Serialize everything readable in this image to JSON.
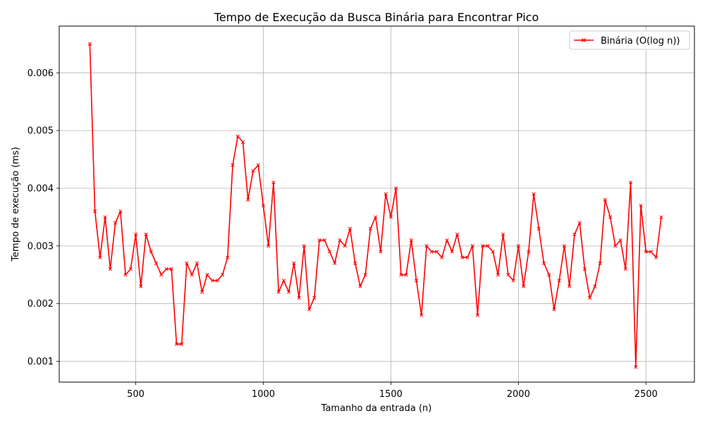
{
  "chart_data": {
    "type": "line",
    "title": "Tempo de Execução da Busca Binária para Encontrar Pico",
    "xlabel": "Tamanho da entrada (n)",
    "ylabel": "Tempo de execução (ms)",
    "xlim": [
      200,
      2690
    ],
    "ylim": [
      0.00064,
      0.00681
    ],
    "xticks": [
      500,
      1000,
      1500,
      2000,
      2500
    ],
    "yticks": [
      0.001,
      0.002,
      0.003,
      0.004,
      0.005,
      0.006
    ],
    "xtick_labels": [
      "500",
      "1000",
      "1500",
      "2000",
      "2500"
    ],
    "ytick_labels": [
      "0.001",
      "0.002",
      "0.003",
      "0.004",
      "0.005",
      "0.006"
    ],
    "grid": true,
    "legend_position": "top-right",
    "series": [
      {
        "name": "Binária (O(log n))",
        "color": "#ff0000",
        "marker": "x",
        "x": [
          320,
          340,
          360,
          380,
          400,
          420,
          440,
          460,
          480,
          500,
          520,
          540,
          560,
          580,
          600,
          620,
          640,
          660,
          680,
          700,
          720,
          740,
          760,
          780,
          800,
          820,
          840,
          860,
          880,
          900,
          920,
          940,
          960,
          980,
          1000,
          1020,
          1040,
          1060,
          1080,
          1100,
          1120,
          1140,
          1160,
          1180,
          1200,
          1220,
          1240,
          1260,
          1280,
          1300,
          1320,
          1340,
          1360,
          1380,
          1400,
          1420,
          1440,
          1460,
          1480,
          1500,
          1520,
          1540,
          1560,
          1580,
          1600,
          1620,
          1640,
          1660,
          1680,
          1700,
          1720,
          1740,
          1760,
          1780,
          1800,
          1820,
          1840,
          1860,
          1880,
          1900,
          1920,
          1940,
          1960,
          1980,
          2000,
          2020,
          2040,
          2060,
          2080,
          2100,
          2120,
          2140,
          2160,
          2180,
          2200,
          2220,
          2240,
          2260,
          2280,
          2300,
          2320,
          2340,
          2360,
          2380,
          2400,
          2420,
          2440,
          2460,
          2480,
          2500,
          2520,
          2540,
          2560
        ],
        "y": [
          0.0065,
          0.0036,
          0.0028,
          0.0035,
          0.0026,
          0.0034,
          0.0036,
          0.0025,
          0.0026,
          0.0032,
          0.0023,
          0.0032,
          0.0029,
          0.0027,
          0.0025,
          0.0026,
          0.0026,
          0.0013,
          0.0013,
          0.0027,
          0.0025,
          0.0027,
          0.0022,
          0.0025,
          0.0024,
          0.0024,
          0.0025,
          0.0028,
          0.0044,
          0.0049,
          0.0048,
          0.0038,
          0.0043,
          0.0044,
          0.0037,
          0.003,
          0.0041,
          0.0022,
          0.0024,
          0.0022,
          0.0027,
          0.0021,
          0.003,
          0.0019,
          0.0021,
          0.0031,
          0.0031,
          0.0029,
          0.0027,
          0.0031,
          0.003,
          0.0033,
          0.0027,
          0.0023,
          0.0025,
          0.0033,
          0.0035,
          0.0029,
          0.0039,
          0.0035,
          0.004,
          0.0025,
          0.0025,
          0.0031,
          0.0024,
          0.0018,
          0.003,
          0.0029,
          0.0029,
          0.0028,
          0.0031,
          0.0029,
          0.0032,
          0.0028,
          0.0028,
          0.003,
          0.0018,
          0.003,
          0.003,
          0.0029,
          0.0025,
          0.0032,
          0.0025,
          0.0024,
          0.003,
          0.0023,
          0.0029,
          0.0039,
          0.0033,
          0.0027,
          0.0025,
          0.0019,
          0.0024,
          0.003,
          0.0023,
          0.0032,
          0.0034,
          0.0026,
          0.0021,
          0.0023,
          0.0027,
          0.0038,
          0.0035,
          0.003,
          0.0031,
          0.0026,
          0.0041,
          0.0009,
          0.0037,
          0.0029,
          0.0029,
          0.0028,
          0.0035
        ]
      }
    ]
  }
}
